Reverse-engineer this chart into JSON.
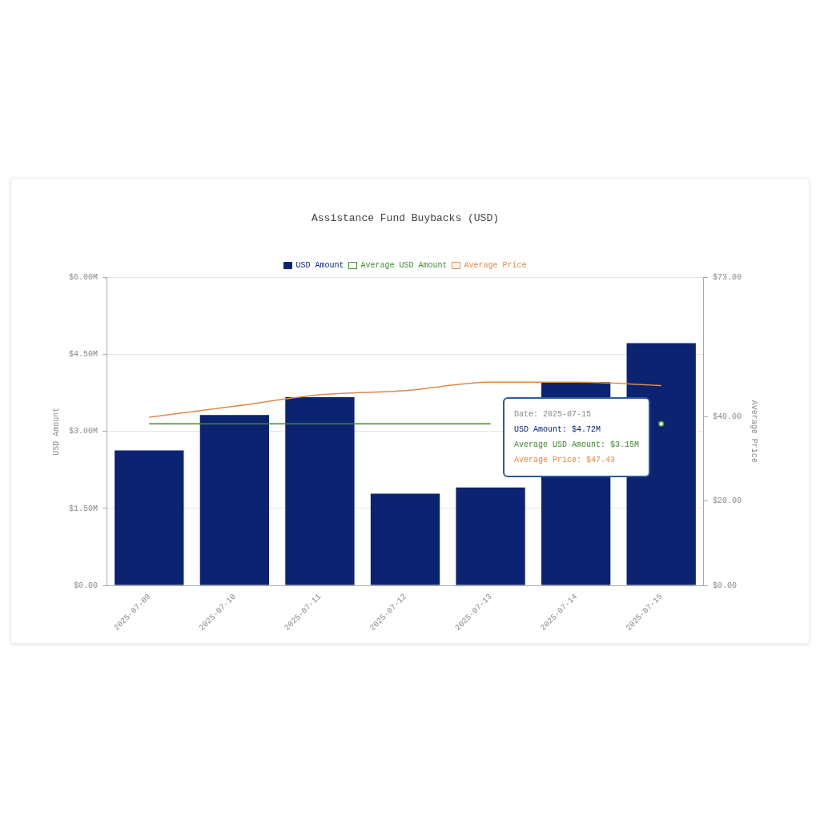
{
  "chart_data": {
    "type": "bar",
    "title": "Assistance Fund Buybacks (USD)",
    "ylabel": "USD Amount",
    "y2label": "Average Price",
    "categories": [
      "2025-07-09",
      "2025-07-10",
      "2025-07-11",
      "2025-07-12",
      "2025-07-13",
      "2025-07-14",
      "2025-07-15"
    ],
    "series": [
      {
        "name": "USD Amount",
        "color": "#0b2370",
        "values": [
          2.63,
          3.32,
          3.67,
          1.79,
          1.91,
          3.96,
          4.72
        ]
      },
      {
        "name": "Average USD Amount",
        "type": "line",
        "color": "#3f8a2e",
        "values": [
          3.15,
          3.15,
          3.15,
          3.15,
          3.15,
          null,
          3.15
        ]
      },
      {
        "name": "Average Price",
        "type": "line",
        "axis": "y2",
        "color": "#e0894a",
        "values": [
          39.9,
          42.5,
          45.2,
          46.2,
          48.2,
          48.2,
          47.4
        ]
      }
    ],
    "ylim": [
      0,
      6
    ],
    "yticks": [
      {
        "value": 0,
        "label": "$0.00"
      },
      {
        "value": 1.5,
        "label": "$1.50M"
      },
      {
        "value": 3,
        "label": "$3.00M"
      },
      {
        "value": 4.5,
        "label": "$4.50M"
      },
      {
        "value": 6,
        "label": "$6.00M"
      }
    ],
    "y2lim": [
      0,
      73
    ],
    "y2ticks": [
      {
        "value": 0,
        "label": "$0.00"
      },
      {
        "value": 20,
        "label": "$20.00"
      },
      {
        "value": 40,
        "label": "$40.00"
      },
      {
        "value": 73,
        "label": "$73.00"
      }
    ],
    "annotations": [
      "Date: 2025-07-15",
      "USD Amount: $4.72M",
      "Average USD Amount: $3.15M",
      "Average Price: $47.43"
    ],
    "grid": "y",
    "legend": "top",
    "marker": "none",
    "line_style": "solid"
  }
}
